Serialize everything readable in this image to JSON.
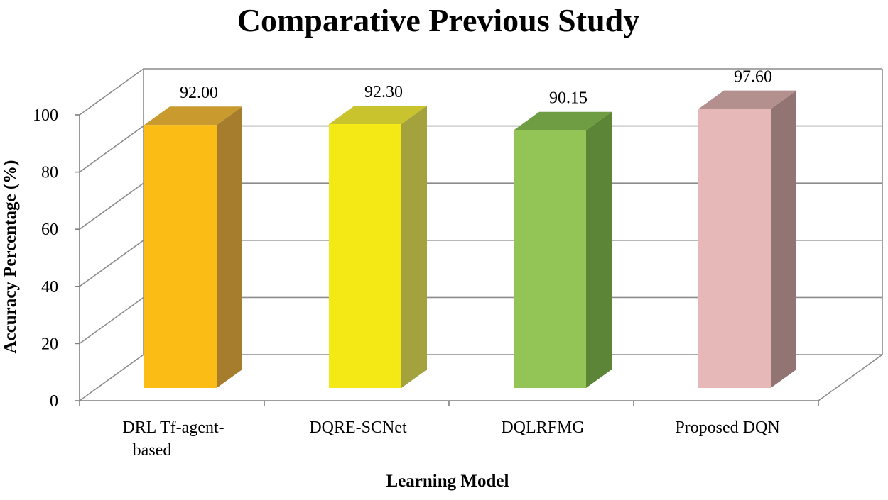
{
  "chart_data": {
    "type": "bar",
    "title": "Comparative Previous Study",
    "xlabel": "Learning Model",
    "ylabel": "Accuracy Percentage (%)",
    "ylim": [
      0,
      100
    ],
    "yticks": [
      0,
      20,
      40,
      60,
      80,
      100
    ],
    "grid": true,
    "legend": "none",
    "categories": [
      [
        "DRL Tf-agent-",
        "based"
      ],
      [
        "DQRE-SCNet"
      ],
      [
        "DQLRFMG"
      ],
      [
        "Proposed DQN"
      ]
    ],
    "values": [
      92.0,
      92.3,
      90.15,
      97.6
    ],
    "value_labels": [
      "92.00",
      "92.30",
      "90.15",
      "97.60"
    ],
    "colors": {
      "front": [
        "#fbbc15",
        "#f4e915",
        "#92c555",
        "#e6b8b7"
      ],
      "side": [
        "#a67c2d",
        "#a3a23d",
        "#5c8538",
        "#927573"
      ],
      "top": [
        "#c99a2e",
        "#c9c42e",
        "#6f9d44",
        "#b38f8e"
      ]
    }
  }
}
